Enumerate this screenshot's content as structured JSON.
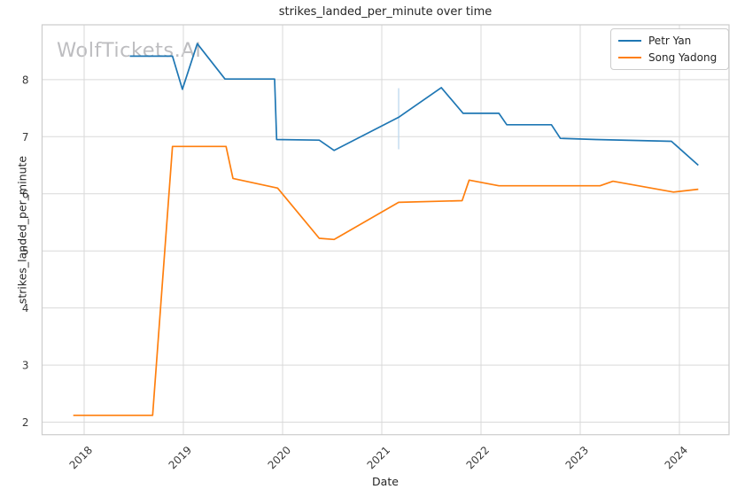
{
  "header": {
    "title": "strikes_landed_per_minute over time"
  },
  "watermark": "WolfTickets.AI",
  "colors": {
    "background": "#ffffff",
    "grid": "#d9d9d9",
    "spine": "#cccccc",
    "text": "#262626",
    "tick_text": "#3a3a3a",
    "watermark": "#b2b2b6",
    "series_blue": "#1f77b4",
    "series_orange": "#ff7f0e",
    "annotation_line": "#bcd8ee"
  },
  "legend": {
    "position": "upper right",
    "entries": [
      "Petr Yan",
      "Song Yadong"
    ]
  },
  "chart_data": {
    "type": "line",
    "title": "strikes_landed_per_minute over time",
    "xlabel": "Date",
    "ylabel": "strikes_landed_per_minute",
    "grid": true,
    "legend_position": "upper right",
    "x_ticks": [
      2018,
      2019,
      2020,
      2021,
      2022,
      2023,
      2024
    ],
    "y_ticks": [
      2,
      3,
      4,
      5,
      6,
      7,
      8
    ],
    "x_range": [
      2017.576,
      2024.5
    ],
    "y_range": [
      1.78,
      8.96
    ],
    "series": [
      {
        "name": "Petr Yan",
        "color": "#1f77b4",
        "points": [
          [
            2018.46,
            8.41
          ],
          [
            2018.89,
            8.41
          ],
          [
            2018.99,
            7.83
          ],
          [
            2019.14,
            8.63
          ],
          [
            2019.42,
            8.01
          ],
          [
            2019.92,
            8.01
          ],
          [
            2019.94,
            6.95
          ],
          [
            2020.37,
            6.94
          ],
          [
            2020.52,
            6.76
          ],
          [
            2021.17,
            7.34
          ],
          [
            2021.6,
            7.86
          ],
          [
            2021.82,
            7.41
          ],
          [
            2022.18,
            7.41
          ],
          [
            2022.26,
            7.21
          ],
          [
            2022.71,
            7.21
          ],
          [
            2022.8,
            6.97
          ],
          [
            2023.16,
            6.95
          ],
          [
            2023.92,
            6.92
          ],
          [
            2024.19,
            6.5
          ]
        ]
      },
      {
        "name": "Song Yadong",
        "color": "#ff7f0e",
        "points": [
          [
            2017.89,
            2.12
          ],
          [
            2018.69,
            2.12
          ],
          [
            2018.89,
            6.83
          ],
          [
            2019.43,
            6.83
          ],
          [
            2019.5,
            6.27
          ],
          [
            2019.95,
            6.1
          ],
          [
            2020.37,
            5.22
          ],
          [
            2020.52,
            5.2
          ],
          [
            2021.17,
            5.85
          ],
          [
            2021.81,
            5.88
          ],
          [
            2021.88,
            6.24
          ],
          [
            2022.18,
            6.14
          ],
          [
            2023.2,
            6.14
          ],
          [
            2023.33,
            6.22
          ],
          [
            2023.94,
            6.03
          ],
          [
            2024.19,
            6.08
          ]
        ]
      }
    ],
    "annotation": {
      "type": "vline",
      "x": 2021.17,
      "y_from": 6.78,
      "y_to": 7.85,
      "color": "#bcd8ee"
    }
  }
}
